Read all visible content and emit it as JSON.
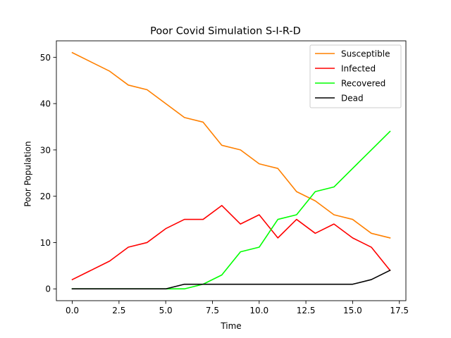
{
  "chart_data": {
    "type": "line",
    "title": "Poor Covid Simulation S-I-R-D",
    "xlabel": "Time",
    "ylabel": "Poor Population",
    "x": [
      0,
      1,
      2,
      3,
      4,
      5,
      6,
      7,
      8,
      9,
      10,
      11,
      12,
      13,
      14,
      15,
      16,
      17
    ],
    "xlim": [
      -0.85,
      17.85
    ],
    "ylim": [
      -2.55,
      53.55
    ],
    "xticks": [
      0,
      2.5,
      5,
      7.5,
      10,
      12.5,
      15,
      17.5
    ],
    "xtick_labels": [
      "0.0",
      "2.5",
      "5.0",
      "7.5",
      "10.0",
      "12.5",
      "15.0",
      "17.5"
    ],
    "yticks": [
      0,
      10,
      20,
      30,
      40,
      50
    ],
    "ytick_labels": [
      "0",
      "10",
      "20",
      "30",
      "40",
      "50"
    ],
    "grid": false,
    "legend_position": "top-right",
    "series": [
      {
        "name": "Susceptible",
        "color": "#ff8000",
        "values": [
          51,
          49,
          47,
          44,
          43,
          40,
          37,
          36,
          31,
          30,
          27,
          26,
          21,
          19,
          16,
          15,
          12,
          11
        ]
      },
      {
        "name": "Infected",
        "color": "#ff0000",
        "values": [
          2,
          4,
          6,
          9,
          10,
          13,
          15,
          15,
          18,
          14,
          16,
          11,
          15,
          12,
          14,
          11,
          9,
          4
        ]
      },
      {
        "name": "Recovered",
        "color": "#00ff00",
        "values": [
          0,
          0,
          0,
          0,
          0,
          0,
          0,
          1,
          3,
          8,
          9,
          15,
          16,
          21,
          22,
          26,
          30,
          34
        ]
      },
      {
        "name": "Dead",
        "color": "#000000",
        "values": [
          0,
          0,
          0,
          0,
          0,
          0,
          1,
          1,
          1,
          1,
          1,
          1,
          1,
          1,
          1,
          1,
          2,
          4
        ]
      }
    ]
  }
}
